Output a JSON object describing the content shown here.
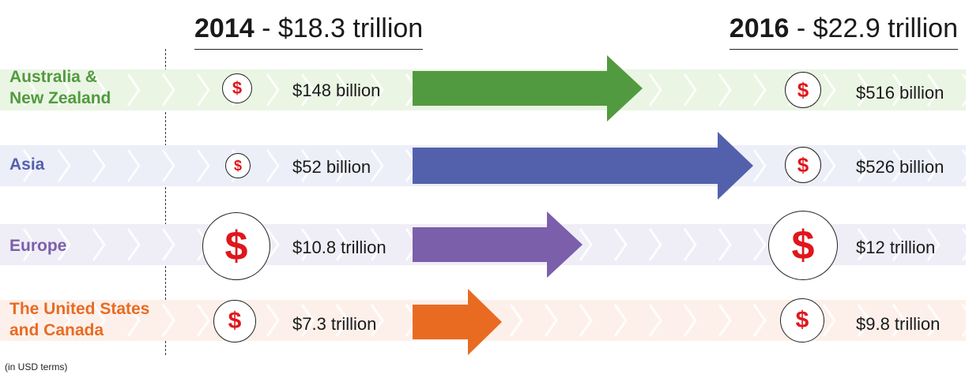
{
  "header": {
    "left": {
      "year": "2014",
      "separator": " - ",
      "amount": "$18.3 trillion"
    },
    "right": {
      "year": "2016",
      "separator": " - ",
      "amount": "$22.9 trillion"
    }
  },
  "coin_symbol": "$",
  "rows": [
    {
      "region": "Australia & New Zealand",
      "label_lines": [
        "Australia &",
        "New Zealand"
      ],
      "value_2014": "$148 billion",
      "value_2016": "$516 billion",
      "color": "#529a3f",
      "band_color": "#eaf5e4"
    },
    {
      "region": "Asia",
      "label_lines": [
        "Asia"
      ],
      "value_2014": "$52 billion",
      "value_2016": "$526 billion",
      "color": "#5361ac",
      "band_color": "#eceef8"
    },
    {
      "region": "Europe",
      "label_lines": [
        "Europe"
      ],
      "value_2014": "$10.8 trillion",
      "value_2016": "$12 trillion",
      "color": "#7b5fab",
      "band_color": "#efedf6"
    },
    {
      "region": "The United States and Canada",
      "label_lines": [
        "The United States",
        "and Canada"
      ],
      "value_2014": "$7.3 trillion",
      "value_2016": "$9.8 trillion",
      "color": "#e96b22",
      "band_color": "#fdf0ea"
    }
  ],
  "footnote": "(in USD terms)"
}
